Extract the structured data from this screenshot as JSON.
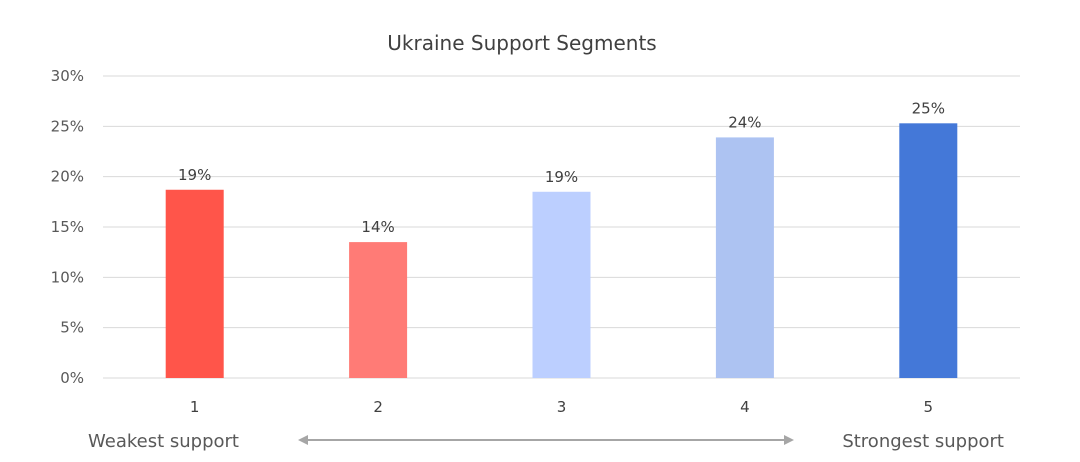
{
  "chart_data": {
    "type": "bar",
    "title": "Ukraine Support Segments",
    "categories": [
      "1",
      "2",
      "3",
      "4",
      "5"
    ],
    "values": [
      18.7,
      13.5,
      18.5,
      23.9,
      25.3
    ],
    "data_labels": [
      "19%",
      "14%",
      "19%",
      "24%",
      "25%"
    ],
    "bar_colors": [
      "#ff554a",
      "#ff7b76",
      "#bccfff",
      "#adc3f2",
      "#4478d8"
    ],
    "ylim": [
      0,
      30
    ],
    "y_ticks": [
      0,
      5,
      10,
      15,
      20,
      25,
      30
    ],
    "y_tick_labels": [
      "0%",
      "5%",
      "10%",
      "15%",
      "20%",
      "25%",
      "30%"
    ],
    "grid": true,
    "legend": "none",
    "scale_annotation": {
      "left_label": "Weakest support",
      "right_label": "Strongest support",
      "arrow_color": "#a6a6a6"
    }
  }
}
